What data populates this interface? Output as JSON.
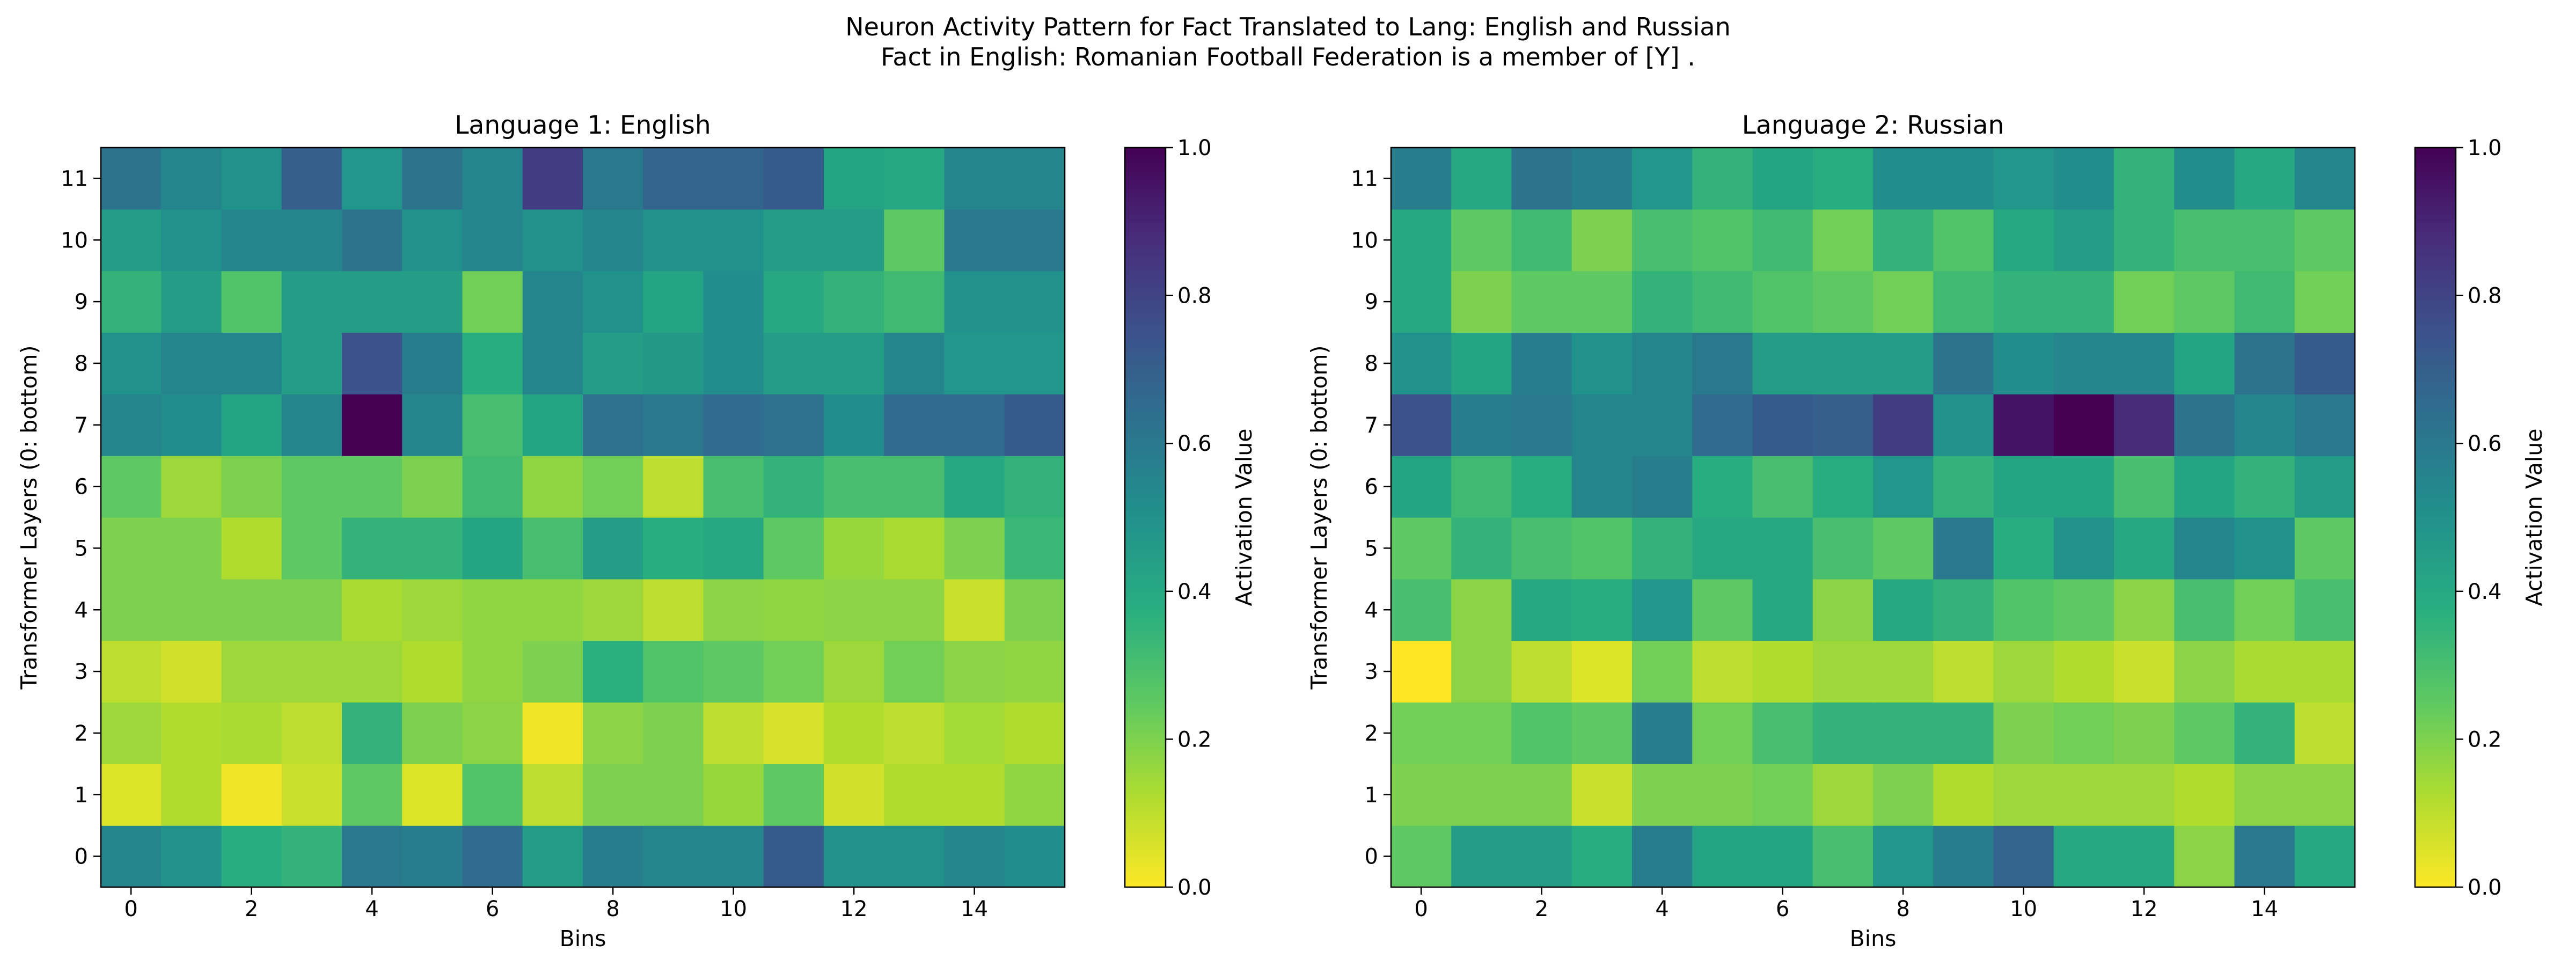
{
  "figure": {
    "title_line1": "Neuron Activity Pattern for Fact Translated to Lang: English and Russian",
    "title_line2": "Fact in English: Romanian Football Federation is a member of [Y] ."
  },
  "chart_data": [
    {
      "type": "heatmap",
      "title": "Language 1: English",
      "xlabel": "Bins",
      "ylabel": "Transformer Layers (0: bottom)",
      "colorbar_label": "Activation Value",
      "colormap": "viridis_r",
      "vmin": 0.0,
      "vmax": 1.0,
      "x_ticks": [
        0,
        2,
        4,
        6,
        8,
        10,
        12,
        14
      ],
      "y_ticks": [
        0,
        1,
        2,
        3,
        4,
        5,
        6,
        7,
        8,
        9,
        10,
        11
      ],
      "colorbar_ticks": [
        "0.0",
        "0.2",
        "0.4",
        "0.6",
        "0.8",
        "1.0"
      ],
      "origin": "lower",
      "values": [
        [
          0.55,
          0.5,
          0.38,
          0.35,
          0.6,
          0.58,
          0.65,
          0.45,
          0.58,
          0.55,
          0.55,
          0.72,
          0.5,
          0.5,
          0.55,
          0.52
        ],
        [
          0.05,
          0.12,
          0.02,
          0.08,
          0.25,
          0.05,
          0.28,
          0.1,
          0.2,
          0.2,
          0.16,
          0.25,
          0.07,
          0.12,
          0.12,
          0.17
        ],
        [
          0.15,
          0.12,
          0.13,
          0.1,
          0.35,
          0.2,
          0.18,
          0.02,
          0.18,
          0.2,
          0.1,
          0.06,
          0.12,
          0.1,
          0.14,
          0.12
        ],
        [
          0.1,
          0.07,
          0.15,
          0.15,
          0.15,
          0.12,
          0.17,
          0.2,
          0.37,
          0.28,
          0.25,
          0.22,
          0.15,
          0.22,
          0.18,
          0.17
        ],
        [
          0.2,
          0.2,
          0.2,
          0.2,
          0.13,
          0.15,
          0.17,
          0.17,
          0.15,
          0.1,
          0.18,
          0.17,
          0.18,
          0.18,
          0.08,
          0.2
        ],
        [
          0.2,
          0.2,
          0.12,
          0.25,
          0.35,
          0.35,
          0.42,
          0.3,
          0.45,
          0.38,
          0.4,
          0.25,
          0.16,
          0.13,
          0.2,
          0.33
        ],
        [
          0.25,
          0.15,
          0.2,
          0.25,
          0.25,
          0.2,
          0.32,
          0.17,
          0.22,
          0.1,
          0.3,
          0.35,
          0.3,
          0.3,
          0.4,
          0.35
        ],
        [
          0.55,
          0.52,
          0.42,
          0.55,
          1.0,
          0.55,
          0.3,
          0.42,
          0.63,
          0.6,
          0.65,
          0.63,
          0.52,
          0.65,
          0.65,
          0.72
        ],
        [
          0.5,
          0.55,
          0.55,
          0.45,
          0.75,
          0.58,
          0.38,
          0.55,
          0.45,
          0.47,
          0.52,
          0.45,
          0.45,
          0.55,
          0.48,
          0.48
        ],
        [
          0.35,
          0.45,
          0.28,
          0.45,
          0.45,
          0.45,
          0.22,
          0.55,
          0.5,
          0.42,
          0.52,
          0.4,
          0.35,
          0.32,
          0.5,
          0.5
        ],
        [
          0.45,
          0.5,
          0.55,
          0.55,
          0.62,
          0.5,
          0.55,
          0.5,
          0.55,
          0.5,
          0.5,
          0.45,
          0.45,
          0.25,
          0.6,
          0.6
        ],
        [
          0.62,
          0.55,
          0.5,
          0.7,
          0.48,
          0.62,
          0.55,
          0.82,
          0.6,
          0.68,
          0.68,
          0.72,
          0.42,
          0.4,
          0.55,
          0.55
        ]
      ]
    },
    {
      "type": "heatmap",
      "title": "Language 2: Russian",
      "xlabel": "Bins",
      "ylabel": "Transformer Layers (0: bottom)",
      "colorbar_label": "Activation Value",
      "colormap": "viridis_r",
      "vmin": 0.0,
      "vmax": 1.0,
      "x_ticks": [
        0,
        2,
        4,
        6,
        8,
        10,
        12,
        14
      ],
      "y_ticks": [
        0,
        1,
        2,
        3,
        4,
        5,
        6,
        7,
        8,
        9,
        10,
        11
      ],
      "colorbar_ticks": [
        "0.0",
        "0.2",
        "0.4",
        "0.6",
        "0.8",
        "1.0"
      ],
      "origin": "lower",
      "values": [
        [
          0.25,
          0.45,
          0.45,
          0.38,
          0.58,
          0.42,
          0.42,
          0.3,
          0.48,
          0.58,
          0.68,
          0.4,
          0.4,
          0.18,
          0.6,
          0.4
        ],
        [
          0.2,
          0.2,
          0.2,
          0.08,
          0.2,
          0.2,
          0.22,
          0.15,
          0.2,
          0.12,
          0.15,
          0.15,
          0.15,
          0.12,
          0.18,
          0.18
        ],
        [
          0.22,
          0.22,
          0.28,
          0.25,
          0.58,
          0.22,
          0.3,
          0.35,
          0.35,
          0.35,
          0.2,
          0.22,
          0.2,
          0.25,
          0.35,
          0.1
        ],
        [
          0.0,
          0.18,
          0.1,
          0.05,
          0.22,
          0.1,
          0.12,
          0.15,
          0.15,
          0.1,
          0.15,
          0.12,
          0.08,
          0.18,
          0.13,
          0.13
        ],
        [
          0.3,
          0.18,
          0.4,
          0.38,
          0.48,
          0.25,
          0.4,
          0.18,
          0.4,
          0.35,
          0.28,
          0.25,
          0.18,
          0.3,
          0.22,
          0.3
        ],
        [
          0.25,
          0.35,
          0.3,
          0.28,
          0.35,
          0.4,
          0.4,
          0.3,
          0.25,
          0.6,
          0.38,
          0.5,
          0.4,
          0.55,
          0.5,
          0.25
        ],
        [
          0.42,
          0.32,
          0.38,
          0.55,
          0.58,
          0.38,
          0.3,
          0.38,
          0.48,
          0.35,
          0.42,
          0.42,
          0.3,
          0.42,
          0.35,
          0.45
        ],
        [
          0.75,
          0.58,
          0.6,
          0.55,
          0.55,
          0.65,
          0.72,
          0.7,
          0.82,
          0.5,
          0.95,
          1.0,
          0.88,
          0.62,
          0.55,
          0.6
        ],
        [
          0.5,
          0.42,
          0.58,
          0.5,
          0.55,
          0.6,
          0.45,
          0.45,
          0.45,
          0.62,
          0.52,
          0.55,
          0.55,
          0.42,
          0.62,
          0.72
        ],
        [
          0.4,
          0.2,
          0.25,
          0.25,
          0.35,
          0.32,
          0.28,
          0.25,
          0.22,
          0.32,
          0.35,
          0.35,
          0.22,
          0.25,
          0.32,
          0.22
        ],
        [
          0.4,
          0.25,
          0.32,
          0.2,
          0.3,
          0.28,
          0.32,
          0.22,
          0.35,
          0.28,
          0.4,
          0.45,
          0.35,
          0.3,
          0.3,
          0.25
        ],
        [
          0.58,
          0.4,
          0.62,
          0.58,
          0.48,
          0.35,
          0.42,
          0.38,
          0.52,
          0.52,
          0.48,
          0.52,
          0.35,
          0.52,
          0.4,
          0.55
        ]
      ]
    }
  ]
}
